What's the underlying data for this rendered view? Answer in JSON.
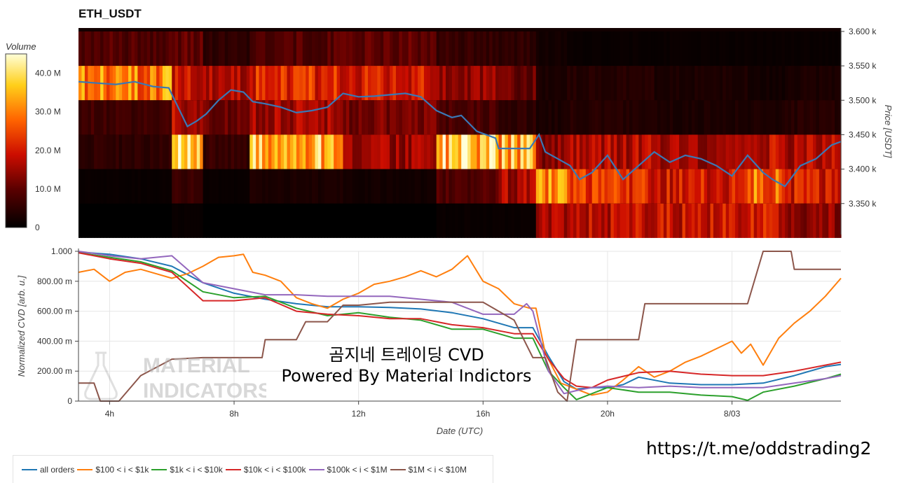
{
  "header": {
    "title": "ETH_USDT"
  },
  "overlay": {
    "line1": "곰지네 트레이딩 CVD",
    "line2": "Powered By Material Indictors",
    "watermark_line1": "MATERIAL",
    "watermark_line2": "INDICATORS",
    "url": "https://t.me/oddstrading2"
  },
  "colors": {
    "all_orders": "#1f77b4",
    "s100_1k": "#ff7f0e",
    "s1k_10k": "#2ca02c",
    "s10k_100k": "#d62728",
    "s100k_1m": "#9467bd",
    "s1m_10m": "#8c564b",
    "price_line": "#3a78b5"
  },
  "chart_data": [
    {
      "type": "heatmap",
      "name": "orderbook-heatmap",
      "ylabel": "Price [USDT]",
      "ylim": [
        3305,
        3605
      ],
      "yticks": [
        "3.600 k",
        "3.550 k",
        "3.500 k",
        "3.450 k",
        "3.400 k",
        "3.350 k"
      ],
      "ytick_values": [
        3600,
        3550,
        3500,
        3450,
        3400,
        3350
      ],
      "xlim": [
        3,
        27.5
      ],
      "colorbar": {
        "label": "Volume",
        "ticks": [
          "40.0 M",
          "30.0 M",
          "20.0 M",
          "10.0 M",
          "0"
        ],
        "tick_values": [
          40,
          30,
          20,
          10,
          0
        ],
        "range": [
          0,
          45
        ]
      },
      "price_bands": [
        3575,
        3525,
        3475,
        3425,
        3375,
        3325
      ],
      "segments": [
        {
          "t0": 3.0,
          "t1": 6.0,
          "vol": [
            9,
            30,
            7,
            5,
            1,
            0
          ]
        },
        {
          "t0": 6.0,
          "t1": 7.0,
          "vol": [
            10,
            20,
            17,
            36,
            6,
            1
          ]
        },
        {
          "t0": 7.0,
          "t1": 8.5,
          "vol": [
            5,
            16,
            11,
            6,
            1,
            0
          ]
        },
        {
          "t0": 8.5,
          "t1": 11.5,
          "vol": [
            9,
            22,
            16,
            34,
            3,
            0
          ]
        },
        {
          "t0": 11.5,
          "t1": 14.5,
          "vol": [
            10,
            20,
            12,
            15,
            2,
            0
          ]
        },
        {
          "t0": 14.5,
          "t1": 16.5,
          "vol": [
            6,
            14,
            8,
            37,
            9,
            1
          ]
        },
        {
          "t0": 16.5,
          "t1": 17.7,
          "vol": [
            5,
            11,
            5,
            34,
            16,
            1
          ]
        },
        {
          "t0": 17.7,
          "t1": 18.7,
          "vol": [
            2,
            3,
            3,
            14,
            30,
            16
          ]
        },
        {
          "t0": 18.7,
          "t1": 21.5,
          "vol": [
            1,
            4,
            4,
            17,
            22,
            18
          ]
        },
        {
          "t0": 21.5,
          "t1": 24.5,
          "vol": [
            1,
            3,
            3,
            16,
            20,
            19
          ]
        },
        {
          "t0": 24.5,
          "t1": 25.7,
          "vol": [
            1,
            2,
            3,
            18,
            28,
            20
          ]
        },
        {
          "t0": 25.7,
          "t1": 27.5,
          "vol": [
            1,
            3,
            4,
            17,
            20,
            14
          ]
        }
      ],
      "price_series": {
        "x": [
          3.0,
          3.6,
          4.2,
          4.8,
          5.4,
          5.9,
          6.2,
          6.5,
          6.8,
          7.1,
          7.5,
          7.9,
          8.3,
          8.6,
          9.0,
          9.5,
          10.0,
          10.5,
          11.0,
          11.5,
          12.0,
          12.5,
          13.0,
          13.5,
          14.0,
          14.5,
          15.0,
          15.3,
          15.8,
          16.4,
          16.5,
          17.0,
          17.5,
          17.8,
          18.0,
          18.4,
          18.8,
          19.1,
          19.5,
          20.0,
          20.5,
          21.0,
          21.5,
          22.0,
          22.5,
          23.0,
          23.5,
          24.0,
          24.5,
          25.0,
          25.3,
          25.7,
          26.2,
          26.7,
          27.2,
          27.5
        ],
        "y": [
          3527,
          3525,
          3523,
          3527,
          3520,
          3518,
          3490,
          3462,
          3470,
          3480,
          3500,
          3515,
          3512,
          3498,
          3495,
          3490,
          3482,
          3485,
          3490,
          3510,
          3505,
          3506,
          3508,
          3510,
          3505,
          3485,
          3475,
          3478,
          3455,
          3445,
          3430,
          3430,
          3430,
          3450,
          3425,
          3415,
          3405,
          3385,
          3395,
          3420,
          3385,
          3405,
          3425,
          3410,
          3420,
          3415,
          3405,
          3390,
          3420,
          3395,
          3385,
          3375,
          3405,
          3415,
          3435,
          3440
        ]
      }
    },
    {
      "type": "line",
      "name": "normalized-cvd",
      "xlabel": "Date (UTC)",
      "ylabel": "Normalized CVD [arb. u.]",
      "xlim": [
        3,
        27.5
      ],
      "ylim": [
        0,
        1000
      ],
      "xticks": [
        "4h",
        "8h",
        "12h",
        "16h",
        "20h",
        "8/03"
      ],
      "xtick_values": [
        4,
        8,
        12,
        16,
        20,
        24
      ],
      "yticks": [
        "1.000",
        "800.00 m",
        "600.00 m",
        "400.00 m",
        "200.00 m",
        "0"
      ],
      "ytick_values": [
        1000,
        800,
        600,
        400,
        200,
        0
      ],
      "series": [
        {
          "name": "all orders",
          "color_key": "all_orders",
          "x": [
            3,
            4,
            5,
            6,
            7,
            8,
            9,
            10,
            11,
            12,
            13,
            14,
            15,
            16,
            17,
            17.6,
            18.1,
            18.6,
            19,
            19.5,
            20,
            20.5,
            21,
            22,
            23,
            24,
            25,
            26,
            27,
            27.5
          ],
          "y": [
            995,
            980,
            950,
            900,
            790,
            720,
            680,
            650,
            630,
            630,
            625,
            615,
            590,
            550,
            490,
            490,
            300,
            130,
            80,
            90,
            90,
            110,
            160,
            120,
            110,
            110,
            120,
            170,
            230,
            245
          ]
        },
        {
          "name": "$100 < i < $1k",
          "color_key": "s100_1k",
          "x": [
            3,
            3.5,
            4,
            4.5,
            5,
            5.5,
            6,
            6.5,
            7,
            7.5,
            8,
            8.3,
            8.6,
            9,
            9.5,
            10,
            10.5,
            11,
            11.5,
            12,
            12.5,
            13,
            13.5,
            14,
            14.5,
            15,
            15.5,
            16,
            16.5,
            17,
            17.5,
            17.7,
            18,
            18.5,
            19,
            19.5,
            20,
            20.5,
            21,
            21.5,
            22,
            22.5,
            23,
            23.5,
            24,
            24.3,
            24.6,
            25,
            25.5,
            26,
            26.5,
            27,
            27.5
          ],
          "y": [
            860,
            880,
            800,
            860,
            880,
            850,
            820,
            850,
            900,
            960,
            970,
            980,
            860,
            840,
            800,
            690,
            650,
            620,
            680,
            720,
            780,
            800,
            830,
            870,
            830,
            880,
            970,
            800,
            750,
            650,
            620,
            620,
            320,
            120,
            80,
            40,
            60,
            140,
            230,
            160,
            200,
            260,
            300,
            350,
            400,
            320,
            380,
            240,
            420,
            520,
            600,
            700,
            820
          ]
        },
        {
          "name": "$1k < i < $10k",
          "color_key": "s1k_10k",
          "x": [
            3,
            4,
            5,
            6,
            7,
            8,
            9,
            10,
            11,
            12,
            13,
            14,
            15,
            16,
            17,
            17.6,
            18.1,
            18.6,
            19,
            19.5,
            20,
            21,
            22,
            23,
            24,
            24.5,
            25,
            26,
            27,
            27.5
          ],
          "y": [
            990,
            960,
            930,
            870,
            730,
            690,
            700,
            620,
            570,
            590,
            560,
            540,
            480,
            480,
            420,
            420,
            200,
            90,
            10,
            50,
            90,
            60,
            60,
            40,
            30,
            5,
            60,
            100,
            150,
            180
          ]
        },
        {
          "name": "$10k < i < $100k",
          "color_key": "s10k_100k",
          "x": [
            3,
            4,
            5,
            6,
            7,
            8,
            9,
            10,
            11,
            12,
            13,
            14,
            15,
            16,
            17,
            17.6,
            18.1,
            18.6,
            19,
            19.5,
            20,
            21,
            22,
            23,
            24,
            25,
            26,
            27,
            27.5
          ],
          "y": [
            990,
            950,
            920,
            860,
            670,
            670,
            690,
            600,
            580,
            570,
            550,
            550,
            510,
            490,
            450,
            450,
            280,
            150,
            100,
            90,
            140,
            190,
            200,
            180,
            170,
            170,
            200,
            240,
            260
          ]
        },
        {
          "name": "$100k < i < $1M",
          "color_key": "s100k_1m",
          "x": [
            3,
            4,
            5,
            6,
            6.5,
            7,
            8,
            9,
            10,
            11,
            12,
            13,
            14,
            15,
            16,
            17,
            17.4,
            17.6,
            18.1,
            18.6,
            19,
            19.5,
            20,
            21,
            22,
            23,
            24,
            25,
            26,
            27,
            27.5
          ],
          "y": [
            1000,
            970,
            950,
            970,
            880,
            790,
            750,
            710,
            710,
            700,
            700,
            700,
            680,
            660,
            580,
            580,
            650,
            600,
            200,
            50,
            70,
            90,
            100,
            90,
            100,
            90,
            90,
            90,
            120,
            150,
            170
          ]
        },
        {
          "name": "$1M < i < $10M",
          "color_key": "s1m_10m",
          "x": [
            3,
            3.5,
            3.7,
            4,
            4.3,
            5,
            6,
            7,
            8,
            8.9,
            9,
            10,
            10.3,
            11,
            11.5,
            12,
            13,
            14,
            15,
            16,
            17,
            17.6,
            18,
            18.4,
            18.7,
            19,
            19.8,
            20,
            21,
            21.2,
            22,
            23,
            24,
            24.5,
            25,
            25.5,
            25.9,
            26,
            27,
            27.5
          ],
          "y": [
            120,
            120,
            0,
            0,
            0,
            170,
            280,
            290,
            290,
            290,
            410,
            410,
            530,
            530,
            640,
            640,
            660,
            660,
            660,
            660,
            540,
            290,
            290,
            60,
            0,
            410,
            410,
            410,
            410,
            650,
            650,
            650,
            650,
            650,
            1000,
            1000,
            1000,
            880,
            880,
            880
          ]
        }
      ]
    }
  ]
}
